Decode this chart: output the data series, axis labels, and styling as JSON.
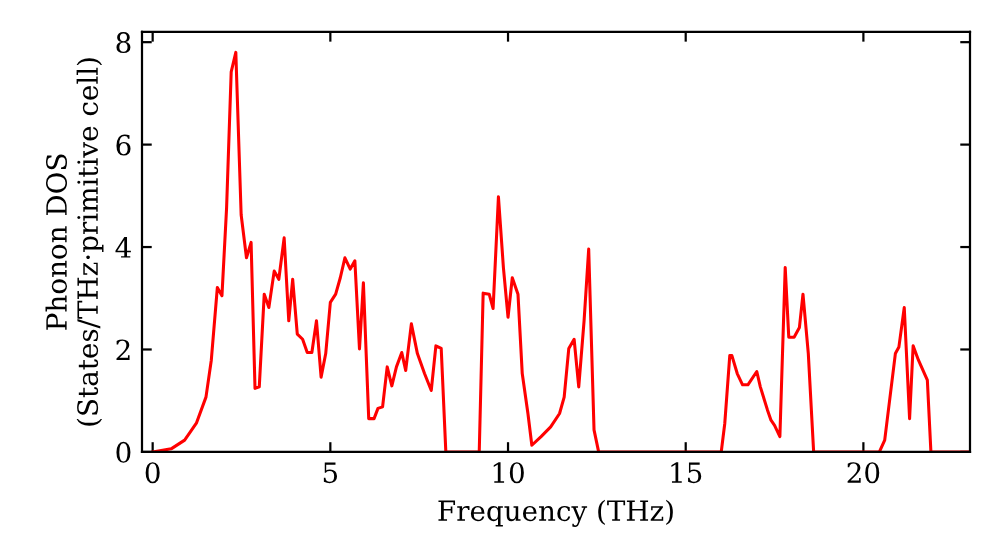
{
  "chart_data": {
    "type": "line",
    "xlabel": "Frequency (THz)",
    "ylabel": "Phonon DOS\n(States/THz·primitive cell)",
    "xlim": [
      -0.3,
      23
    ],
    "ylim": [
      0,
      8.2
    ],
    "xticks": [
      0,
      5,
      10,
      15,
      20
    ],
    "yticks": [
      0,
      2,
      4,
      6,
      8
    ],
    "grid": false,
    "legend": false,
    "marker": "none",
    "line_style": "solid",
    "series": [
      {
        "color": "#ff0000",
        "x": [
          0,
          0.52,
          0.9,
          1.23,
          1.5,
          1.65,
          1.82,
          1.95,
          2.08,
          2.21,
          2.34,
          2.49,
          2.64,
          2.77,
          2.88,
          3.0,
          3.14,
          3.27,
          3.42,
          3.55,
          3.7,
          3.83,
          3.94,
          4.07,
          4.22,
          4.35,
          4.48,
          4.61,
          4.74,
          4.87,
          5.0,
          5.15,
          5.28,
          5.41,
          5.56,
          5.69,
          5.82,
          5.93,
          6.08,
          6.23,
          6.34,
          6.47,
          6.6,
          6.73,
          6.86,
          7.01,
          7.12,
          7.28,
          7.45,
          7.65,
          7.84,
          7.97,
          8.12,
          8.25,
          9.19,
          9.3,
          9.47,
          9.58,
          9.73,
          9.87,
          10.0,
          10.12,
          10.28,
          10.4,
          10.56,
          10.67,
          10.93,
          11.2,
          11.45,
          11.58,
          11.71,
          11.86,
          11.99,
          12.14,
          12.27,
          12.42,
          12.55,
          16.0,
          16.1,
          16.24,
          16.3,
          16.45,
          16.6,
          16.75,
          17.0,
          17.1,
          17.3,
          17.4,
          17.5,
          17.65,
          17.8,
          17.9,
          18.05,
          18.2,
          18.3,
          18.45,
          18.6,
          20.45,
          20.6,
          20.9,
          21.0,
          21.15,
          21.3,
          21.4,
          21.55,
          21.8,
          21.9,
          23.0
        ],
        "values": [
          0,
          0.06,
          0.23,
          0.56,
          1.07,
          1.79,
          3.21,
          3.05,
          4.76,
          7.42,
          7.8,
          4.63,
          3.79,
          4.09,
          1.24,
          1.27,
          3.08,
          2.82,
          3.53,
          3.37,
          4.18,
          2.56,
          3.37,
          2.3,
          2.2,
          1.94,
          1.94,
          2.56,
          1.46,
          1.92,
          2.92,
          3.08,
          3.4,
          3.79,
          3.57,
          3.73,
          2.01,
          3.3,
          0.65,
          0.65,
          0.85,
          0.88,
          1.66,
          1.29,
          1.66,
          1.94,
          1.59,
          2.5,
          1.92,
          1.53,
          1.2,
          2.07,
          2.02,
          0,
          0,
          3.1,
          3.08,
          2.8,
          4.98,
          3.6,
          2.63,
          3.4,
          3.08,
          1.53,
          0.75,
          0.13,
          0.3,
          0.49,
          0.75,
          1.07,
          2.02,
          2.2,
          1.27,
          2.56,
          3.96,
          0.43,
          0,
          0,
          0.56,
          1.88,
          1.88,
          1.53,
          1.31,
          1.31,
          1.57,
          1.27,
          0.82,
          0.62,
          0.52,
          0.3,
          3.6,
          2.24,
          2.24,
          2.43,
          3.08,
          1.92,
          0,
          0,
          0.23,
          1.92,
          2.05,
          2.82,
          0.65,
          2.07,
          1.79,
          1.4,
          0,
          0
        ]
      }
    ]
  }
}
